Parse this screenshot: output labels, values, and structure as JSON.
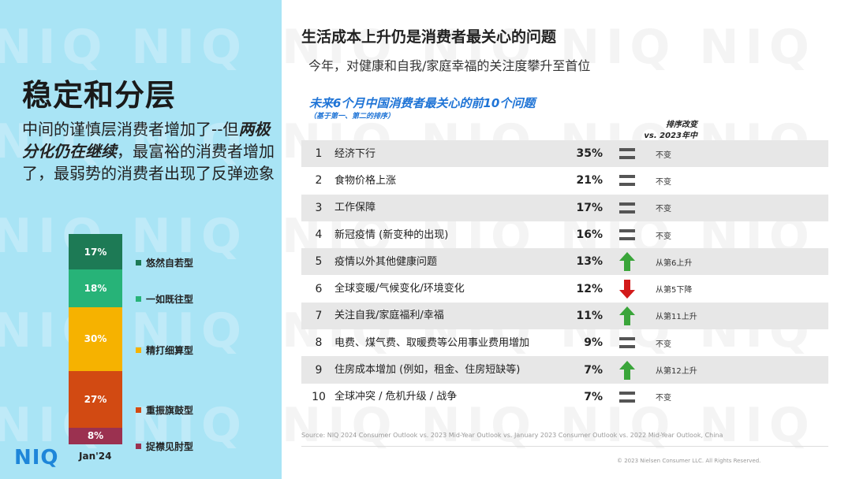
{
  "left": {
    "title": "稳定和分层",
    "desc_part1": "中间的谨慎层消费者增加了--但",
    "desc_emph": "两极分化仍在继续",
    "desc_part2": "，最富裕的消费者增加了，最弱势的消费者出现了反弹迹象",
    "date_label": "Jan'24",
    "logo_text": "NIQ",
    "segments": [
      {
        "label": "悠然自若型",
        "value": "17%",
        "pct": 17,
        "color": "#1d7a55"
      },
      {
        "label": "一如既往型",
        "value": "18%",
        "pct": 18,
        "color": "#27b378"
      },
      {
        "label": "精打细算型",
        "value": "30%",
        "pct": 30,
        "color": "#f6b200"
      },
      {
        "label": "重振旗鼓型",
        "value": "27%",
        "pct": 27,
        "color": "#d24a12"
      },
      {
        "label": "捉襟见肘型",
        "value": "8%",
        "pct": 8,
        "color": "#9b3150"
      }
    ]
  },
  "right": {
    "title": "生活成本上升仍是消费者最关心的问题",
    "subtitle": "今年，对健康和自我/家庭幸福的关注度攀升至首位",
    "chart_title": "未来6个月中国消费者最关心的前10个问题",
    "chart_subtitle": "（基于第一、第二的排序）",
    "rank_header_1": "排序改变",
    "rank_header_2": "vs. 2023年中",
    "rows": [
      {
        "rank": "1",
        "label": "经济下行",
        "pct": "35%",
        "icon": "equal-icon",
        "change": "不变"
      },
      {
        "rank": "2",
        "label": "食物价格上涨",
        "pct": "21%",
        "icon": "equal-icon",
        "change": "不变"
      },
      {
        "rank": "3",
        "label": "工作保障",
        "pct": "17%",
        "icon": "equal-icon",
        "change": "不变"
      },
      {
        "rank": "4",
        "label": "新冠疫情 (新变种的出现)",
        "pct": "16%",
        "icon": "equal-icon",
        "change": "不变"
      },
      {
        "rank": "5",
        "label": "疫情以外其他健康问题",
        "pct": "13%",
        "icon": "up-arrow-icon",
        "change": "从第6上升"
      },
      {
        "rank": "6",
        "label": "全球变暖/气候变化/环境变化",
        "pct": "12%",
        "icon": "down-arrow-icon",
        "change": "从第5下降"
      },
      {
        "rank": "7",
        "label": "关注自我/家庭福利/幸福",
        "pct": "11%",
        "icon": "up-arrow-icon",
        "change": "从第11上升"
      },
      {
        "rank": "8",
        "label": "电费、煤气费、取暖费等公用事业费用增加",
        "pct": "9%",
        "icon": "equal-icon",
        "change": "不变"
      },
      {
        "rank": "9",
        "label": "住房成本增加 (例如，租金、住房短缺等)",
        "pct": "7%",
        "icon": "up-arrow-icon",
        "change": "从第12上升"
      },
      {
        "rank": "10",
        "label": "全球冲突 / 危机升级 / 战争",
        "pct": "7%",
        "icon": "equal-icon",
        "change": "不变"
      }
    ],
    "source": "Source: NIQ 2024 Consumer Outlook vs. 2023 Mid-Year Outlook vs. January 2023 Consumer Outlook vs. 2022 Mid-Year Outlook, China",
    "copyright": "© 2023 Nielsen Consumer LLC. All Rights Reserved."
  },
  "colors": {
    "left_bg": "#a9e4f5",
    "accent_blue": "#1f74d6",
    "up_green": "#3aa53a",
    "down_red": "#d21a1a",
    "equal_gray": "#555555"
  }
}
